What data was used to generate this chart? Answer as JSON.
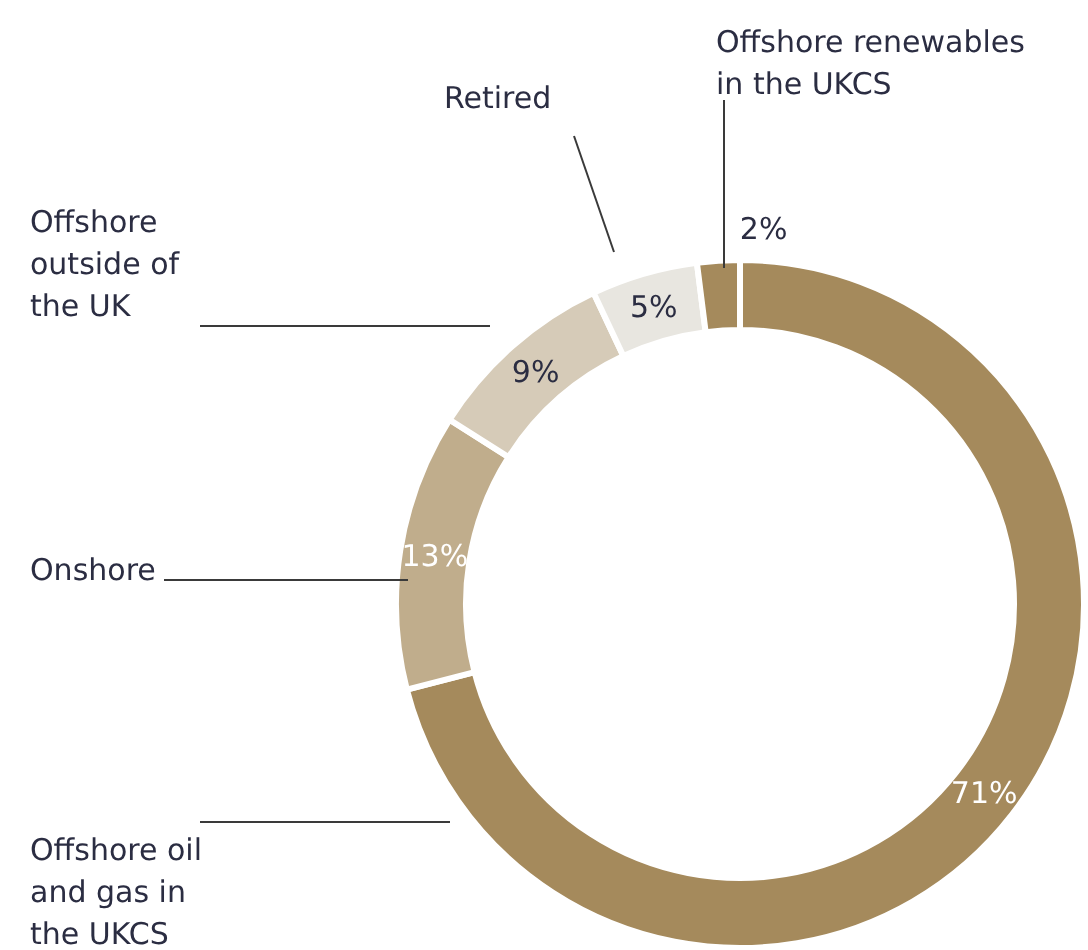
{
  "chart_data": {
    "type": "donut",
    "categories": [
      "Offshore oil and gas in the UKCS",
      "Onshore",
      "Offshore outside of the UK",
      "Retired",
      "Offshore renewables in the UKCS"
    ],
    "values": [
      71,
      13,
      9,
      5,
      2
    ],
    "colors": [
      "#a58a5c",
      "#c0ad8c",
      "#d6cbb8",
      "#e8e6e0",
      "#a58a5c"
    ],
    "value_labels": [
      "71%",
      "13%",
      "9%",
      "5%",
      "2%"
    ]
  }
}
